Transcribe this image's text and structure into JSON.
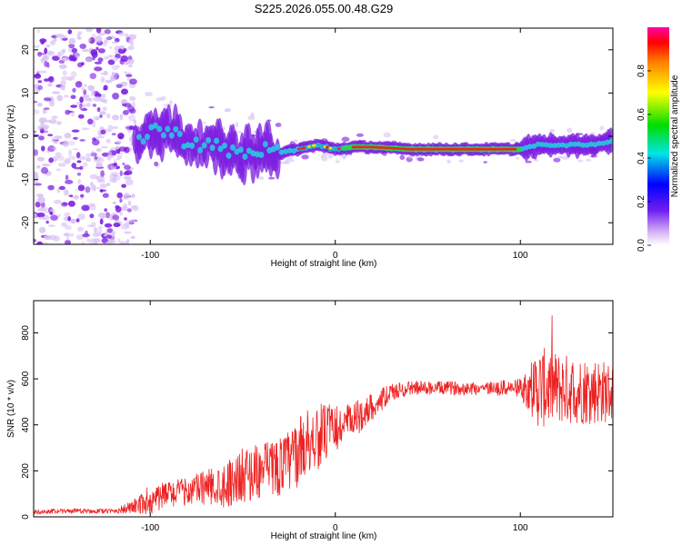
{
  "title": "S225.2026.055.00.48.G29",
  "colors": {
    "snr_line": "#ee2222",
    "spec_purple": "#7a1ae0",
    "spec_light": "#d9c2f5",
    "spec_cyan": "#22d0e0",
    "spec_red": "#ee2222"
  },
  "chart_data": [
    {
      "type": "heatmap",
      "name": "spectrogram",
      "title": "S225.2026.055.00.48.G29",
      "xlabel": "Height of straight line (km)",
      "ylabel": "Frequency (Hz)",
      "xlim": [
        -163,
        150
      ],
      "ylim": [
        -25,
        25
      ],
      "xticks": [
        -100,
        0,
        100
      ],
      "xtick_labels": [
        "-100",
        "0",
        "100"
      ],
      "yticks": [
        -20,
        -10,
        0,
        10,
        20
      ],
      "ytick_labels": [
        "-20",
        "-10",
        "0",
        "10",
        "20"
      ],
      "ridge_x": [
        -108,
        -100,
        -90,
        -80,
        -70,
        -60,
        -50,
        -40,
        -30,
        -20,
        -10,
        0,
        10,
        20,
        40,
        60,
        80,
        100,
        110,
        120,
        130,
        140,
        150
      ],
      "ridge_freq": [
        -2,
        2,
        1,
        -1,
        -2,
        -3,
        -4,
        -3,
        -4,
        -3,
        -2,
        -3,
        -2.5,
        -2.5,
        -3,
        -3,
        -3,
        -3,
        -2,
        -2,
        -2,
        -2,
        -1
      ],
      "noise_region_x": [
        -163,
        -108
      ],
      "colorbar": {
        "label": "Normalized spectral amplitude",
        "range": [
          0,
          1
        ],
        "ticks": [
          0.0,
          0.2,
          0.4,
          0.6,
          0.8
        ],
        "tick_labels": [
          "0.0",
          "0.2",
          "0.4",
          "0.6",
          "0.8"
        ]
      }
    },
    {
      "type": "line",
      "name": "snr",
      "xlabel": "Height of straight line (km)",
      "ylabel": "SNR (10 * v/v)",
      "xlim": [
        -163,
        150
      ],
      "ylim": [
        0,
        940
      ],
      "xticks": [
        -100,
        0,
        100
      ],
      "xtick_labels": [
        "-100",
        "0",
        "100"
      ],
      "yticks": [
        0,
        200,
        400,
        600,
        800
      ],
      "ytick_labels": [
        "0",
        "200",
        "400",
        "600",
        "800"
      ],
      "envelope_x": [
        -163,
        -150,
        -120,
        -110,
        -100,
        -90,
        -80,
        -70,
        -60,
        -50,
        -40,
        -30,
        -25,
        -20,
        -15,
        -10,
        0,
        10,
        20,
        30,
        40,
        60,
        80,
        100,
        110,
        120,
        130,
        140,
        150
      ],
      "envelope_mean": [
        20,
        25,
        25,
        40,
        70,
        100,
        110,
        130,
        140,
        180,
        200,
        220,
        240,
        280,
        330,
        350,
        380,
        420,
        480,
        540,
        560,
        560,
        560,
        560,
        560,
        560,
        550,
        550,
        540
      ],
      "envelope_amp": [
        10,
        10,
        10,
        30,
        60,
        60,
        60,
        80,
        100,
        120,
        120,
        130,
        140,
        150,
        150,
        150,
        100,
        80,
        60,
        40,
        30,
        30,
        30,
        40,
        180,
        160,
        150,
        150,
        130
      ]
    }
  ]
}
